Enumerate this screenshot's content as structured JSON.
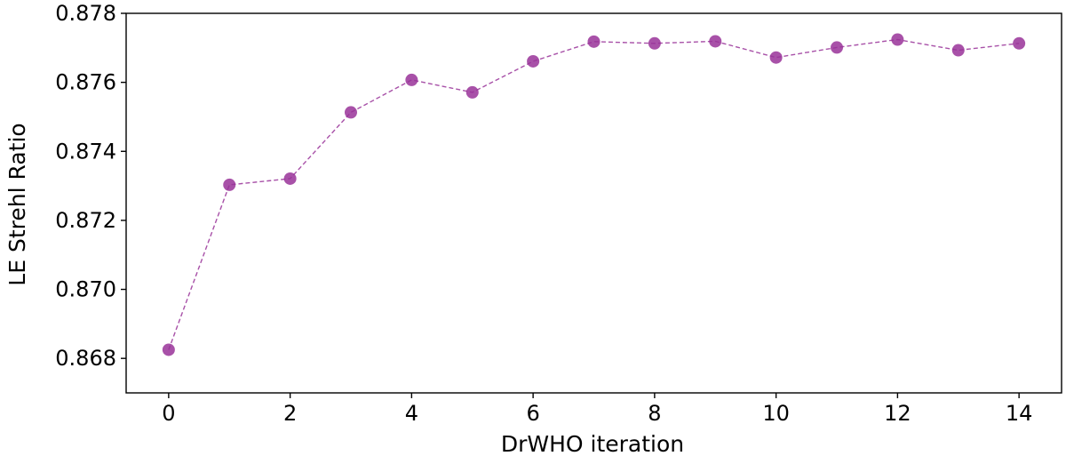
{
  "chart_data": {
    "type": "line",
    "title": "",
    "xlabel": "DrWHO iteration",
    "ylabel": "LE Strehl Ratio",
    "xlim": [
      -0.7,
      14.7
    ],
    "ylim": [
      0.867,
      0.878
    ],
    "xticks": [
      0,
      2,
      4,
      6,
      8,
      10,
      12,
      14
    ],
    "xtick_labels": [
      "0",
      "2",
      "4",
      "6",
      "8",
      "10",
      "12",
      "14"
    ],
    "yticks": [
      0.868,
      0.87,
      0.872,
      0.874,
      0.876,
      0.878
    ],
    "ytick_labels": [
      "0.868",
      "0.870",
      "0.872",
      "0.874",
      "0.876",
      "0.878"
    ],
    "grid": false,
    "legend": "none",
    "series": [
      {
        "color": "#993399",
        "line_style": "dashed",
        "marker": "circle",
        "x": [
          0,
          1,
          2,
          3,
          4,
          5,
          6,
          7,
          8,
          9,
          10,
          11,
          12,
          13,
          14
        ],
        "values": [
          0.86825,
          0.87303,
          0.87321,
          0.87513,
          0.87607,
          0.87571,
          0.87661,
          0.87718,
          0.87713,
          0.87719,
          0.87672,
          0.87701,
          0.87724,
          0.87693,
          0.87713
        ]
      }
    ]
  }
}
